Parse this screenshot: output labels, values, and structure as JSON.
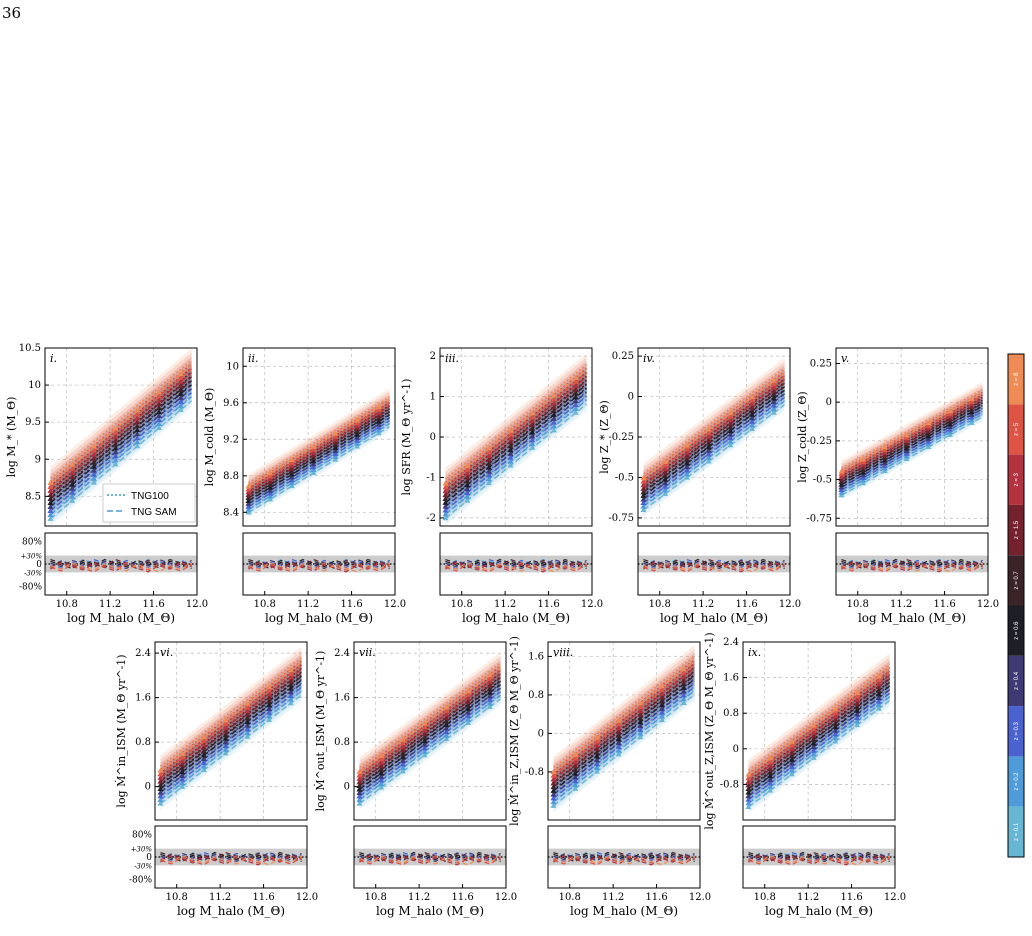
{
  "page": {
    "number": "36"
  },
  "legend": {
    "entries": [
      "TNG100",
      "TNG SAM"
    ]
  },
  "colorbar": {
    "labels": [
      "z = 0.1",
      "z = 0.2",
      "z = 0.3",
      "z = 0.4",
      "z = 0.6",
      "z = 0.7",
      "z = 1.5",
      "z = 3",
      "z = 5",
      "z = 8"
    ],
    "colors": [
      "#67b6d3",
      "#4f9ad8",
      "#4a62cf",
      "#3d3a74",
      "#1e1e27",
      "#3b2427",
      "#74232e",
      "#b3323f",
      "#dd5444",
      "#ef8c56"
    ]
  },
  "xaxis": {
    "label": "log M_halo (M_Θ)",
    "ticks": [
      "10.8",
      "11.2",
      "11.6",
      "12.0"
    ],
    "range": [
      10.6,
      12.0
    ]
  },
  "ratio_ticks": {
    "labels": [
      "80%",
      "+30%",
      "0",
      "-30%",
      "-80%"
    ]
  },
  "chart_data": [
    {
      "type": "line",
      "panel": "i.",
      "ylabel": "log M_* (M_Θ)",
      "ylim": [
        8.1,
        10.5
      ],
      "yticks": [
        8.5,
        9.0,
        9.5,
        10.0,
        10.5
      ],
      "band": [
        8.2,
        10.4
      ]
    },
    {
      "type": "line",
      "panel": "ii.",
      "ylabel": "log M_cold (M_Θ)",
      "ylim": [
        8.25,
        10.2
      ],
      "yticks": [
        8.4,
        8.8,
        9.2,
        9.6,
        10.0
      ],
      "band": [
        8.4,
        9.7
      ]
    },
    {
      "type": "line",
      "panel": "iii.",
      "ylabel": "log SFR (M_Θ yr^-1)",
      "ylim": [
        -2.2,
        2.2
      ],
      "yticks": [
        -2,
        -1,
        0,
        1,
        2
      ],
      "band": [
        -2.0,
        1.9
      ]
    },
    {
      "type": "line",
      "panel": "iv.",
      "ylabel": "log Z_* (Z_Θ)",
      "ylim": [
        -0.8,
        0.3
      ],
      "yticks": [
        -0.75,
        -0.5,
        -0.25,
        0.0,
        0.25
      ],
      "band": [
        -0.7,
        0.2
      ]
    },
    {
      "type": "line",
      "panel": "v.",
      "ylabel": "log Z_cold (Z_Θ)",
      "ylim": [
        -0.8,
        0.35
      ],
      "yticks": [
        -0.75,
        -0.5,
        -0.25,
        0.0,
        0.25
      ],
      "band": [
        -0.6,
        0.1
      ]
    },
    {
      "type": "line",
      "panel": "vi.",
      "ylabel": "log Ṁ^in_ISM (M_Θ yr^-1)",
      "ylim": [
        -0.6,
        2.6
      ],
      "yticks": [
        0.0,
        0.8,
        1.6,
        2.4
      ],
      "band": [
        -0.3,
        2.4
      ]
    },
    {
      "type": "line",
      "panel": "vii.",
      "ylabel": "log Ṁ^out_ISM (M_Θ yr^-1)",
      "ylim": [
        -0.6,
        2.6
      ],
      "yticks": [
        0.0,
        0.8,
        1.6,
        2.4
      ],
      "band": [
        -0.3,
        2.3
      ]
    },
    {
      "type": "line",
      "panel": "viii.",
      "ylabel": "log Ṁ^in_Z,ISM (Z_Θ M_Θ yr^-1)",
      "ylim": [
        -1.8,
        1.9
      ],
      "yticks": [
        -0.8,
        0.0,
        0.8,
        1.6
      ],
      "band": [
        -1.5,
        1.7
      ]
    },
    {
      "type": "line",
      "panel": "ix.",
      "ylabel": "log Ṁ^out_Z,ISM (Z_Θ M_Θ yr^-1)",
      "ylim": [
        -1.6,
        2.4
      ],
      "yticks": [
        -0.8,
        0.0,
        0.8,
        1.6,
        2.4
      ],
      "band": [
        -1.3,
        2.0
      ]
    }
  ]
}
